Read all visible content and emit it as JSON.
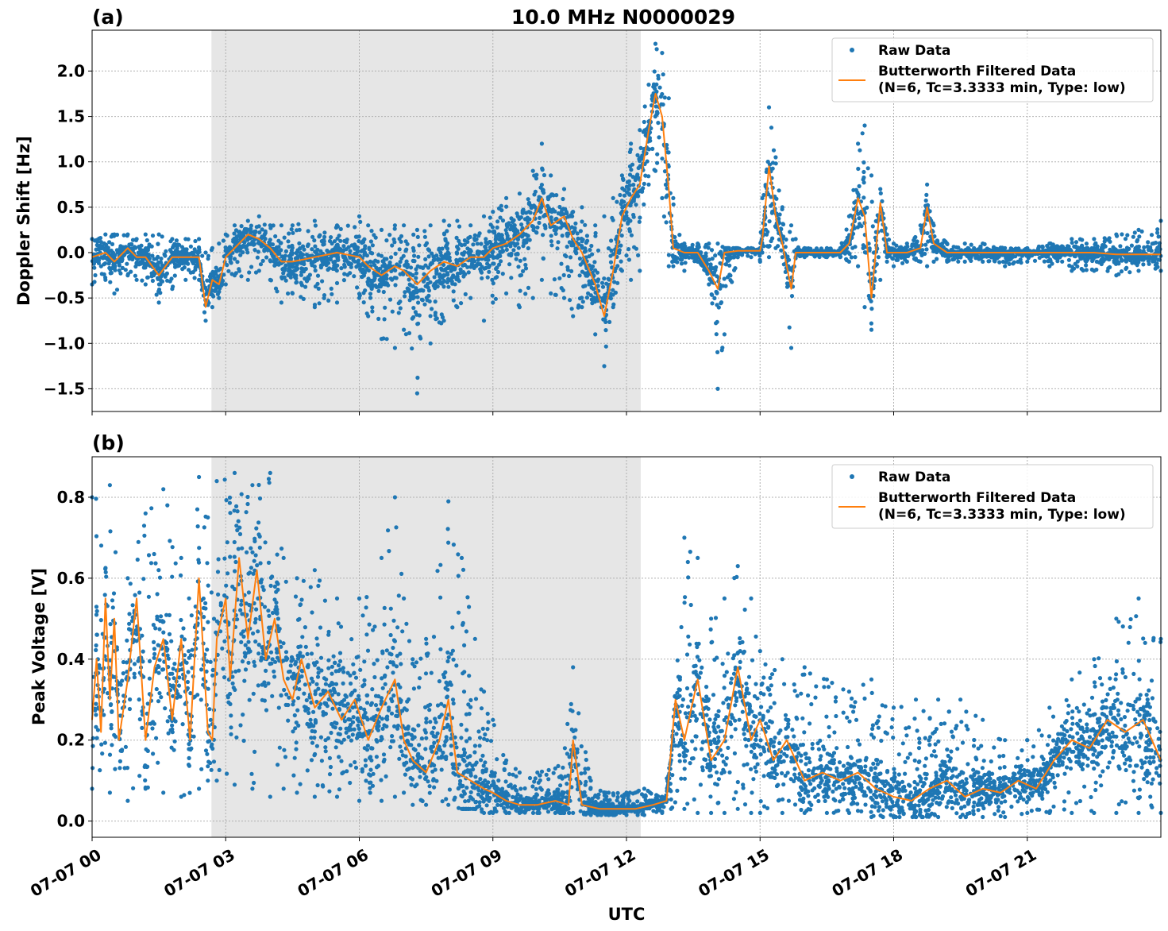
{
  "figure": {
    "title": "10.0 MHz N0000029",
    "xlabel": "UTC"
  },
  "colors": {
    "raw": "#1f77b4",
    "filtered": "#ff7f0e",
    "shade": "#e6e6e6",
    "grid": "#b0b0b0"
  },
  "chart_data": [
    {
      "type": "scatter",
      "panel_label": "(a)",
      "title": "10.0 MHz N0000029",
      "ylabel": "Doppler Shift [Hz]",
      "xlabel": "",
      "xlim": [
        0,
        24
      ],
      "ylim": [
        -1.75,
        2.45
      ],
      "grid": true,
      "legend": "top-right",
      "x_ticks": [
        0,
        3,
        6,
        9,
        12,
        15,
        18,
        21
      ],
      "x_tick_labels": [
        "07-07 00",
        "07-07 03",
        "07-07 06",
        "07-07 09",
        "07-07 12",
        "07-07 15",
        "07-07 18",
        "07-07 21"
      ],
      "y_ticks": [
        -1.5,
        -1.0,
        -0.5,
        0.0,
        0.5,
        1.0,
        1.5,
        2.0
      ],
      "y_tick_labels": [
        "−1.5",
        "−1.0",
        "−0.5",
        "0.0",
        "0.5",
        "1.0",
        "1.5",
        "2.0"
      ],
      "shaded_interval": [
        2.68,
        12.32
      ],
      "series": [
        {
          "name": "Raw Data",
          "kind": "points",
          "x": [
            0,
            0.3,
            0.5,
            0.8,
            1.0,
            1.2,
            1.5,
            1.8,
            2.1,
            2.4,
            2.55,
            2.7,
            2.85,
            3.0,
            3.2,
            3.5,
            3.75,
            4.0,
            4.25,
            4.5,
            5.0,
            5.5,
            6.0,
            6.2,
            6.5,
            6.8,
            7.0,
            7.3,
            7.6,
            7.9,
            8.2,
            8.5,
            8.8,
            9.0,
            9.3,
            9.6,
            9.9,
            10.1,
            10.3,
            10.6,
            10.8,
            11.0,
            11.3,
            11.5,
            11.7,
            11.9,
            12.1,
            12.3,
            12.5,
            12.65,
            12.8,
            12.95,
            13.05,
            13.3,
            13.6,
            13.85,
            14.05,
            14.2,
            14.5,
            14.8,
            15.0,
            15.05,
            15.2,
            15.35,
            15.5,
            15.7,
            15.8,
            16.0,
            16.5,
            16.8,
            17.0,
            17.2,
            17.35,
            17.5,
            17.7,
            17.85,
            18.0,
            18.3,
            18.6,
            18.75,
            18.9,
            19.2,
            19.6,
            20.0,
            20.5,
            21.0,
            21.5,
            22.0,
            22.5,
            23.0,
            23.5,
            24.0
          ],
          "ymin": [
            -0.35,
            -0.3,
            -0.45,
            -0.25,
            -0.3,
            -0.35,
            -0.55,
            -0.4,
            -0.3,
            -0.3,
            -0.75,
            -0.6,
            -0.5,
            -0.35,
            -0.25,
            -0.3,
            -0.2,
            -0.3,
            -0.55,
            -0.45,
            -0.6,
            -0.55,
            -0.5,
            -0.7,
            -0.95,
            -1.05,
            -0.85,
            -1.55,
            -1.0,
            -0.75,
            -0.6,
            -0.5,
            -0.75,
            -0.55,
            -0.45,
            -0.6,
            -0.5,
            -0.3,
            -0.45,
            -0.5,
            -0.7,
            -0.6,
            -0.9,
            -1.25,
            -0.6,
            -0.2,
            -0.3,
            -0.2,
            0.75,
            0.9,
            0.6,
            -0.15,
            -0.15,
            -0.2,
            -0.1,
            -0.35,
            -1.5,
            -0.9,
            -0.05,
            -0.05,
            -0.1,
            0.0,
            -0.05,
            0.05,
            -0.05,
            -1.05,
            -0.05,
            -0.05,
            -0.05,
            -0.05,
            -0.1,
            -0.15,
            -0.6,
            -0.85,
            -0.3,
            -0.1,
            -0.15,
            -0.1,
            -0.1,
            -0.15,
            -0.1,
            -0.1,
            -0.1,
            -0.1,
            -0.15,
            -0.1,
            -0.15,
            -0.2,
            -0.2,
            -0.25,
            -0.2,
            -0.2
          ],
          "ymax": [
            0.15,
            0.2,
            0.2,
            0.2,
            0.15,
            0.2,
            0.2,
            0.15,
            0.15,
            0.15,
            0.0,
            0.05,
            0.1,
            0.2,
            0.3,
            0.35,
            0.4,
            0.3,
            0.3,
            0.3,
            0.35,
            0.3,
            0.4,
            0.3,
            0.25,
            0.3,
            0.3,
            0.25,
            0.3,
            0.35,
            0.35,
            0.3,
            0.4,
            0.45,
            0.6,
            0.65,
            0.9,
            1.2,
            0.85,
            0.7,
            0.45,
            0.5,
            0.3,
            0.4,
            0.6,
            0.85,
            1.2,
            1.35,
            1.85,
            2.3,
            2.2,
            1.7,
            0.6,
            0.1,
            0.1,
            0.1,
            0.1,
            0.05,
            0.05,
            0.05,
            0.05,
            0.6,
            1.6,
            1.05,
            0.5,
            0.3,
            0.15,
            0.05,
            0.05,
            0.05,
            0.4,
            1.2,
            1.4,
            0.85,
            0.7,
            0.2,
            0.1,
            0.1,
            0.3,
            0.75,
            0.3,
            0.1,
            0.1,
            0.1,
            0.05,
            0.05,
            0.1,
            0.15,
            0.15,
            0.2,
            0.25,
            0.35
          ]
        },
        {
          "name": "Butterworth Filtered Data\n(N=6, Tc=3.3333 min, Type: low)",
          "kind": "line",
          "x": [
            0,
            0.3,
            0.5,
            0.8,
            1.0,
            1.2,
            1.5,
            1.8,
            2.1,
            2.4,
            2.55,
            2.7,
            2.85,
            3.0,
            3.2,
            3.5,
            3.75,
            4.0,
            4.25,
            4.5,
            5.0,
            5.5,
            6.0,
            6.2,
            6.5,
            6.8,
            7.0,
            7.3,
            7.6,
            7.9,
            8.2,
            8.5,
            8.8,
            9.0,
            9.3,
            9.6,
            9.9,
            10.1,
            10.3,
            10.6,
            10.8,
            11.0,
            11.3,
            11.5,
            11.7,
            11.9,
            12.1,
            12.3,
            12.5,
            12.65,
            12.8,
            12.95,
            13.05,
            13.3,
            13.6,
            13.85,
            14.05,
            14.2,
            14.5,
            14.8,
            15.0,
            15.05,
            15.2,
            15.35,
            15.5,
            15.7,
            15.8,
            16.0,
            16.5,
            16.8,
            17.0,
            17.2,
            17.35,
            17.5,
            17.7,
            17.85,
            18.0,
            18.3,
            18.6,
            18.75,
            18.9,
            19.2,
            19.6,
            20.0,
            20.5,
            21.0,
            21.5,
            22.0,
            22.5,
            23.0,
            23.5,
            24.0
          ],
          "y": [
            -0.05,
            0.0,
            -0.1,
            0.05,
            -0.05,
            -0.05,
            -0.25,
            -0.05,
            -0.05,
            -0.05,
            -0.6,
            -0.3,
            -0.35,
            -0.05,
            0.05,
            0.2,
            0.15,
            0.05,
            -0.1,
            -0.1,
            -0.05,
            0.0,
            -0.05,
            -0.15,
            -0.25,
            -0.15,
            -0.2,
            -0.35,
            -0.2,
            -0.1,
            -0.15,
            -0.05,
            -0.05,
            0.05,
            0.1,
            0.2,
            0.35,
            0.6,
            0.3,
            0.4,
            0.15,
            0.0,
            -0.35,
            -0.7,
            -0.2,
            0.4,
            0.6,
            0.75,
            1.35,
            1.75,
            1.5,
            0.7,
            0.05,
            0.0,
            0.0,
            -0.2,
            -0.4,
            0.0,
            0.02,
            0.02,
            0.02,
            0.15,
            0.95,
            0.4,
            0.1,
            -0.4,
            0.0,
            0.0,
            0.0,
            0.0,
            0.1,
            0.6,
            0.4,
            -0.5,
            0.55,
            0.0,
            0.0,
            0.0,
            0.05,
            0.5,
            0.1,
            0.0,
            0.0,
            0.0,
            0.0,
            0.0,
            0.0,
            0.0,
            0.0,
            -0.02,
            -0.02,
            -0.02
          ]
        }
      ]
    },
    {
      "type": "scatter",
      "panel_label": "(b)",
      "title": "",
      "ylabel": "Peak Voltage [V]",
      "xlabel": "UTC",
      "xlim": [
        0,
        24
      ],
      "ylim": [
        -0.04,
        0.9
      ],
      "grid": true,
      "legend": "top-right",
      "x_ticks": [
        0,
        3,
        6,
        9,
        12,
        15,
        18,
        21
      ],
      "x_tick_labels": [
        "07-07 00",
        "07-07 03",
        "07-07 06",
        "07-07 09",
        "07-07 12",
        "07-07 15",
        "07-07 18",
        "07-07 21"
      ],
      "y_ticks": [
        0.0,
        0.2,
        0.4,
        0.6,
        0.8
      ],
      "y_tick_labels": [
        "0.0",
        "0.2",
        "0.4",
        "0.6",
        "0.8"
      ],
      "shaded_interval": [
        2.68,
        12.32
      ],
      "series": [
        {
          "name": "Raw Data",
          "kind": "points",
          "x": [
            0,
            0.4,
            0.8,
            1.2,
            1.6,
            2.0,
            2.4,
            2.6,
            2.8,
            3.2,
            3.6,
            4.0,
            4.3,
            4.6,
            5.0,
            5.5,
            6.0,
            6.5,
            6.8,
            7.0,
            7.2,
            7.5,
            8.0,
            8.3,
            8.6,
            8.8,
            9.0,
            9.3,
            9.6,
            10.0,
            10.4,
            10.8,
            11.2,
            11.6,
            12.0,
            12.4,
            12.8,
            13.0,
            13.3,
            13.6,
            13.9,
            14.2,
            14.5,
            14.8,
            15.0,
            15.5,
            16.0,
            16.5,
            17.0,
            17.5,
            18.0,
            18.5,
            19.0,
            19.5,
            20.0,
            20.5,
            21.0,
            21.5,
            22.0,
            22.5,
            23.0,
            23.5,
            24.0
          ],
          "ymin": [
            0.08,
            0.07,
            0.05,
            0.08,
            0.07,
            0.06,
            0.08,
            0.1,
            0.1,
            0.09,
            0.08,
            0.06,
            0.08,
            0.07,
            0.06,
            0.06,
            0.05,
            0.05,
            0.06,
            0.07,
            0.04,
            0.04,
            0.04,
            0.03,
            0.03,
            0.02,
            0.02,
            0.02,
            0.02,
            0.02,
            0.02,
            0.02,
            0.015,
            0.015,
            0.015,
            0.015,
            0.02,
            0.03,
            0.03,
            0.02,
            0.02,
            0.02,
            0.03,
            0.02,
            0.02,
            0.02,
            0.02,
            0.02,
            0.02,
            0.01,
            0.01,
            0.01,
            0.01,
            0.01,
            0.01,
            0.01,
            0.02,
            0.02,
            0.02,
            0.02,
            0.02,
            0.02,
            0.02
          ],
          "ymax": [
            0.8,
            0.83,
            0.6,
            0.76,
            0.82,
            0.65,
            0.85,
            0.75,
            0.84,
            0.86,
            0.83,
            0.86,
            0.65,
            0.6,
            0.62,
            0.55,
            0.55,
            0.65,
            0.8,
            0.55,
            0.4,
            0.45,
            0.79,
            0.65,
            0.45,
            0.32,
            0.25,
            0.15,
            0.12,
            0.12,
            0.13,
            0.38,
            0.1,
            0.07,
            0.07,
            0.08,
            0.06,
            0.15,
            0.7,
            0.65,
            0.5,
            0.55,
            0.63,
            0.55,
            0.42,
            0.4,
            0.38,
            0.35,
            0.32,
            0.35,
            0.28,
            0.3,
            0.3,
            0.3,
            0.25,
            0.2,
            0.2,
            0.28,
            0.35,
            0.4,
            0.5,
            0.55,
            0.45
          ]
        },
        {
          "name": "Butterworth Filtered Data\n(N=6, Tc=3.3333 min, Type: low)",
          "kind": "line",
          "x": [
            0,
            0.1,
            0.2,
            0.3,
            0.4,
            0.5,
            0.6,
            0.8,
            1.0,
            1.2,
            1.4,
            1.6,
            1.8,
            2.0,
            2.2,
            2.4,
            2.6,
            2.7,
            2.8,
            3.0,
            3.1,
            3.3,
            3.5,
            3.7,
            3.9,
            4.1,
            4.3,
            4.5,
            4.7,
            5.0,
            5.3,
            5.6,
            5.9,
            6.2,
            6.5,
            6.8,
            7.0,
            7.2,
            7.5,
            7.8,
            8.0,
            8.2,
            8.5,
            8.8,
            9.0,
            9.3,
            9.6,
            10.0,
            10.4,
            10.7,
            10.8,
            11.0,
            11.4,
            11.8,
            12.2,
            12.6,
            12.9,
            13.1,
            13.3,
            13.6,
            13.9,
            14.2,
            14.5,
            14.8,
            15.0,
            15.3,
            15.6,
            16.0,
            16.4,
            16.8,
            17.2,
            17.6,
            18.0,
            18.4,
            18.8,
            19.2,
            19.6,
            20.0,
            20.4,
            20.8,
            21.2,
            21.6,
            22.0,
            22.4,
            22.8,
            23.2,
            23.6,
            24.0
          ],
          "y": [
            0.25,
            0.4,
            0.22,
            0.55,
            0.3,
            0.5,
            0.2,
            0.35,
            0.55,
            0.2,
            0.38,
            0.45,
            0.25,
            0.45,
            0.2,
            0.6,
            0.22,
            0.2,
            0.45,
            0.55,
            0.35,
            0.65,
            0.45,
            0.62,
            0.4,
            0.5,
            0.35,
            0.3,
            0.4,
            0.28,
            0.32,
            0.25,
            0.3,
            0.2,
            0.28,
            0.35,
            0.2,
            0.15,
            0.12,
            0.2,
            0.3,
            0.12,
            0.1,
            0.08,
            0.07,
            0.05,
            0.04,
            0.04,
            0.05,
            0.04,
            0.2,
            0.04,
            0.03,
            0.03,
            0.03,
            0.04,
            0.05,
            0.3,
            0.2,
            0.35,
            0.15,
            0.2,
            0.38,
            0.2,
            0.25,
            0.15,
            0.2,
            0.1,
            0.12,
            0.1,
            0.12,
            0.08,
            0.06,
            0.05,
            0.08,
            0.1,
            0.06,
            0.08,
            0.07,
            0.1,
            0.08,
            0.15,
            0.2,
            0.18,
            0.25,
            0.22,
            0.25,
            0.15
          ]
        }
      ]
    }
  ]
}
